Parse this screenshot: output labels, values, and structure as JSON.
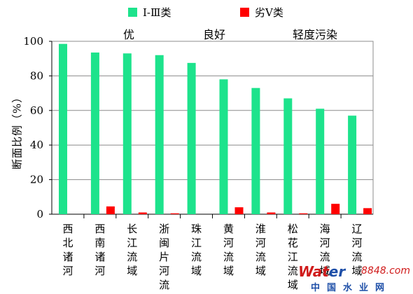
{
  "legend": {
    "series1": "I-Ⅲ类",
    "series2": "劣V类"
  },
  "bands": {
    "excellent": "优",
    "good": "良好",
    "light_pollution": "轻度污染"
  },
  "watermark": {
    "brand_a": "Wat",
    "brand_b": "er",
    "brand_num": "8848",
    "brand_suffix": ".com",
    "cn": "中国水业网"
  },
  "chart_data": {
    "type": "bar",
    "ylabel": "断面比例（%）",
    "xlabel": "",
    "ylim": [
      0,
      100
    ],
    "yticks": [
      0,
      20,
      40,
      60,
      80,
      100
    ],
    "grid": true,
    "legend_position": "top",
    "categories": [
      "西北诸河",
      "西南诸河",
      "长江流域",
      "浙闽片河流",
      "珠江流域",
      "黄河流域",
      "淮河流域",
      "松花江流域",
      "海河流域",
      "辽河流域"
    ],
    "series": [
      {
        "name": "I-Ⅲ类",
        "color": "#1de38c",
        "values": [
          98.5,
          93.5,
          93,
          92,
          87.5,
          78,
          73,
          67,
          61,
          57
        ]
      },
      {
        "name": "劣V类",
        "color": "#ff0000",
        "values": [
          0,
          4.5,
          1,
          0.5,
          0,
          4,
          1,
          0.5,
          6,
          3.5
        ]
      }
    ]
  }
}
